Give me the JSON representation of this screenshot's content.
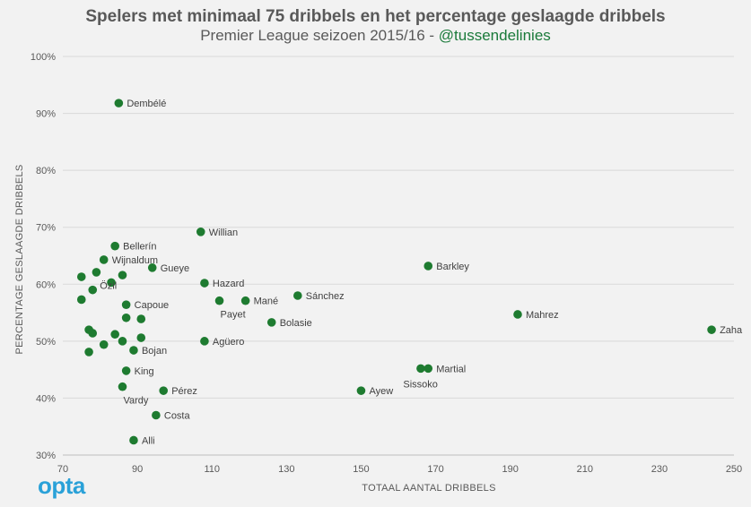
{
  "header": {
    "title": "Spelers met minimaal 75 dribbels en het percentage geslaagde dribbels",
    "subtitle_main": "Premier League seizoen 2015/16 - ",
    "subtitle_handle": "@tussendelinies"
  },
  "logo": {
    "text": "opta",
    "color": "#2aa1d8"
  },
  "chart_data": {
    "type": "scatter",
    "xlabel": "TOTAAL AANTAL DRIBBELS",
    "ylabel": "PERCENTAGE GESLAAGDE DRIBBELS",
    "xlim": [
      70,
      250
    ],
    "ylim": [
      30,
      100
    ],
    "x_ticks": [
      70,
      90,
      110,
      130,
      150,
      170,
      190,
      210,
      230,
      250
    ],
    "y_ticks": [
      30,
      40,
      50,
      60,
      70,
      80,
      90,
      100
    ],
    "y_tick_suffix": "%",
    "grid": "horizontal",
    "point_color": "#1e7b30",
    "points": [
      {
        "x": 85,
        "y": 91.8,
        "label": "Dembélé",
        "anchor": "right"
      },
      {
        "x": 107,
        "y": 69.2,
        "label": "Willian",
        "anchor": "right"
      },
      {
        "x": 84,
        "y": 66.7,
        "label": "Bellerín",
        "anchor": "right"
      },
      {
        "x": 81,
        "y": 64.3,
        "label": "Wijnaldum",
        "anchor": "right"
      },
      {
        "x": 94,
        "y": 62.9,
        "label": "Gueye",
        "anchor": "right"
      },
      {
        "x": 168,
        "y": 63.2,
        "label": "Barkley",
        "anchor": "right"
      },
      {
        "x": 79,
        "y": 62.1,
        "label": "",
        "anchor": "right"
      },
      {
        "x": 75,
        "y": 61.3,
        "label": "",
        "anchor": "right"
      },
      {
        "x": 86,
        "y": 61.6,
        "label": "",
        "anchor": "right"
      },
      {
        "x": 83,
        "y": 60.3,
        "label": "",
        "anchor": "right"
      },
      {
        "x": 108,
        "y": 60.2,
        "label": "Hazard",
        "anchor": "right"
      },
      {
        "x": 78,
        "y": 59.0,
        "label": "Özil",
        "anchor": "upper-right"
      },
      {
        "x": 133,
        "y": 58.0,
        "label": "Sánchez",
        "anchor": "right"
      },
      {
        "x": 75,
        "y": 57.3,
        "label": "",
        "anchor": "right"
      },
      {
        "x": 112,
        "y": 57.1,
        "label": "Payet",
        "anchor": "below"
      },
      {
        "x": 119,
        "y": 57.1,
        "label": "Mané",
        "anchor": "right"
      },
      {
        "x": 87,
        "y": 56.4,
        "label": "Capoue",
        "anchor": "right"
      },
      {
        "x": 192,
        "y": 54.7,
        "label": "Mahrez",
        "anchor": "right"
      },
      {
        "x": 87,
        "y": 54.1,
        "label": "",
        "anchor": "right"
      },
      {
        "x": 91,
        "y": 53.9,
        "label": "",
        "anchor": "right"
      },
      {
        "x": 126,
        "y": 53.3,
        "label": "Bolasie",
        "anchor": "right"
      },
      {
        "x": 244,
        "y": 52.0,
        "label": "Zaha",
        "anchor": "right"
      },
      {
        "x": 77,
        "y": 52.0,
        "label": "",
        "anchor": "right"
      },
      {
        "x": 78,
        "y": 51.4,
        "label": "",
        "anchor": "right"
      },
      {
        "x": 84,
        "y": 51.2,
        "label": "",
        "anchor": "right"
      },
      {
        "x": 91,
        "y": 50.6,
        "label": "",
        "anchor": "right"
      },
      {
        "x": 86,
        "y": 50.0,
        "label": "",
        "anchor": "right"
      },
      {
        "x": 108,
        "y": 50.0,
        "label": "Agüero",
        "anchor": "right"
      },
      {
        "x": 81,
        "y": 49.4,
        "label": "",
        "anchor": "right"
      },
      {
        "x": 89,
        "y": 48.4,
        "label": "Bojan",
        "anchor": "right"
      },
      {
        "x": 77,
        "y": 48.1,
        "label": "",
        "anchor": "right"
      },
      {
        "x": 166,
        "y": 45.2,
        "label": "Sissoko",
        "anchor": "below-left"
      },
      {
        "x": 168,
        "y": 45.2,
        "label": "Martial",
        "anchor": "right"
      },
      {
        "x": 87,
        "y": 44.8,
        "label": "King",
        "anchor": "right"
      },
      {
        "x": 86,
        "y": 42.0,
        "label": "Vardy",
        "anchor": "below"
      },
      {
        "x": 97,
        "y": 41.3,
        "label": "Pérez",
        "anchor": "right"
      },
      {
        "x": 150,
        "y": 41.3,
        "label": "Ayew",
        "anchor": "right"
      },
      {
        "x": 95,
        "y": 37.0,
        "label": "Costa",
        "anchor": "right"
      },
      {
        "x": 89,
        "y": 32.6,
        "label": "Alli",
        "anchor": "right"
      }
    ]
  }
}
